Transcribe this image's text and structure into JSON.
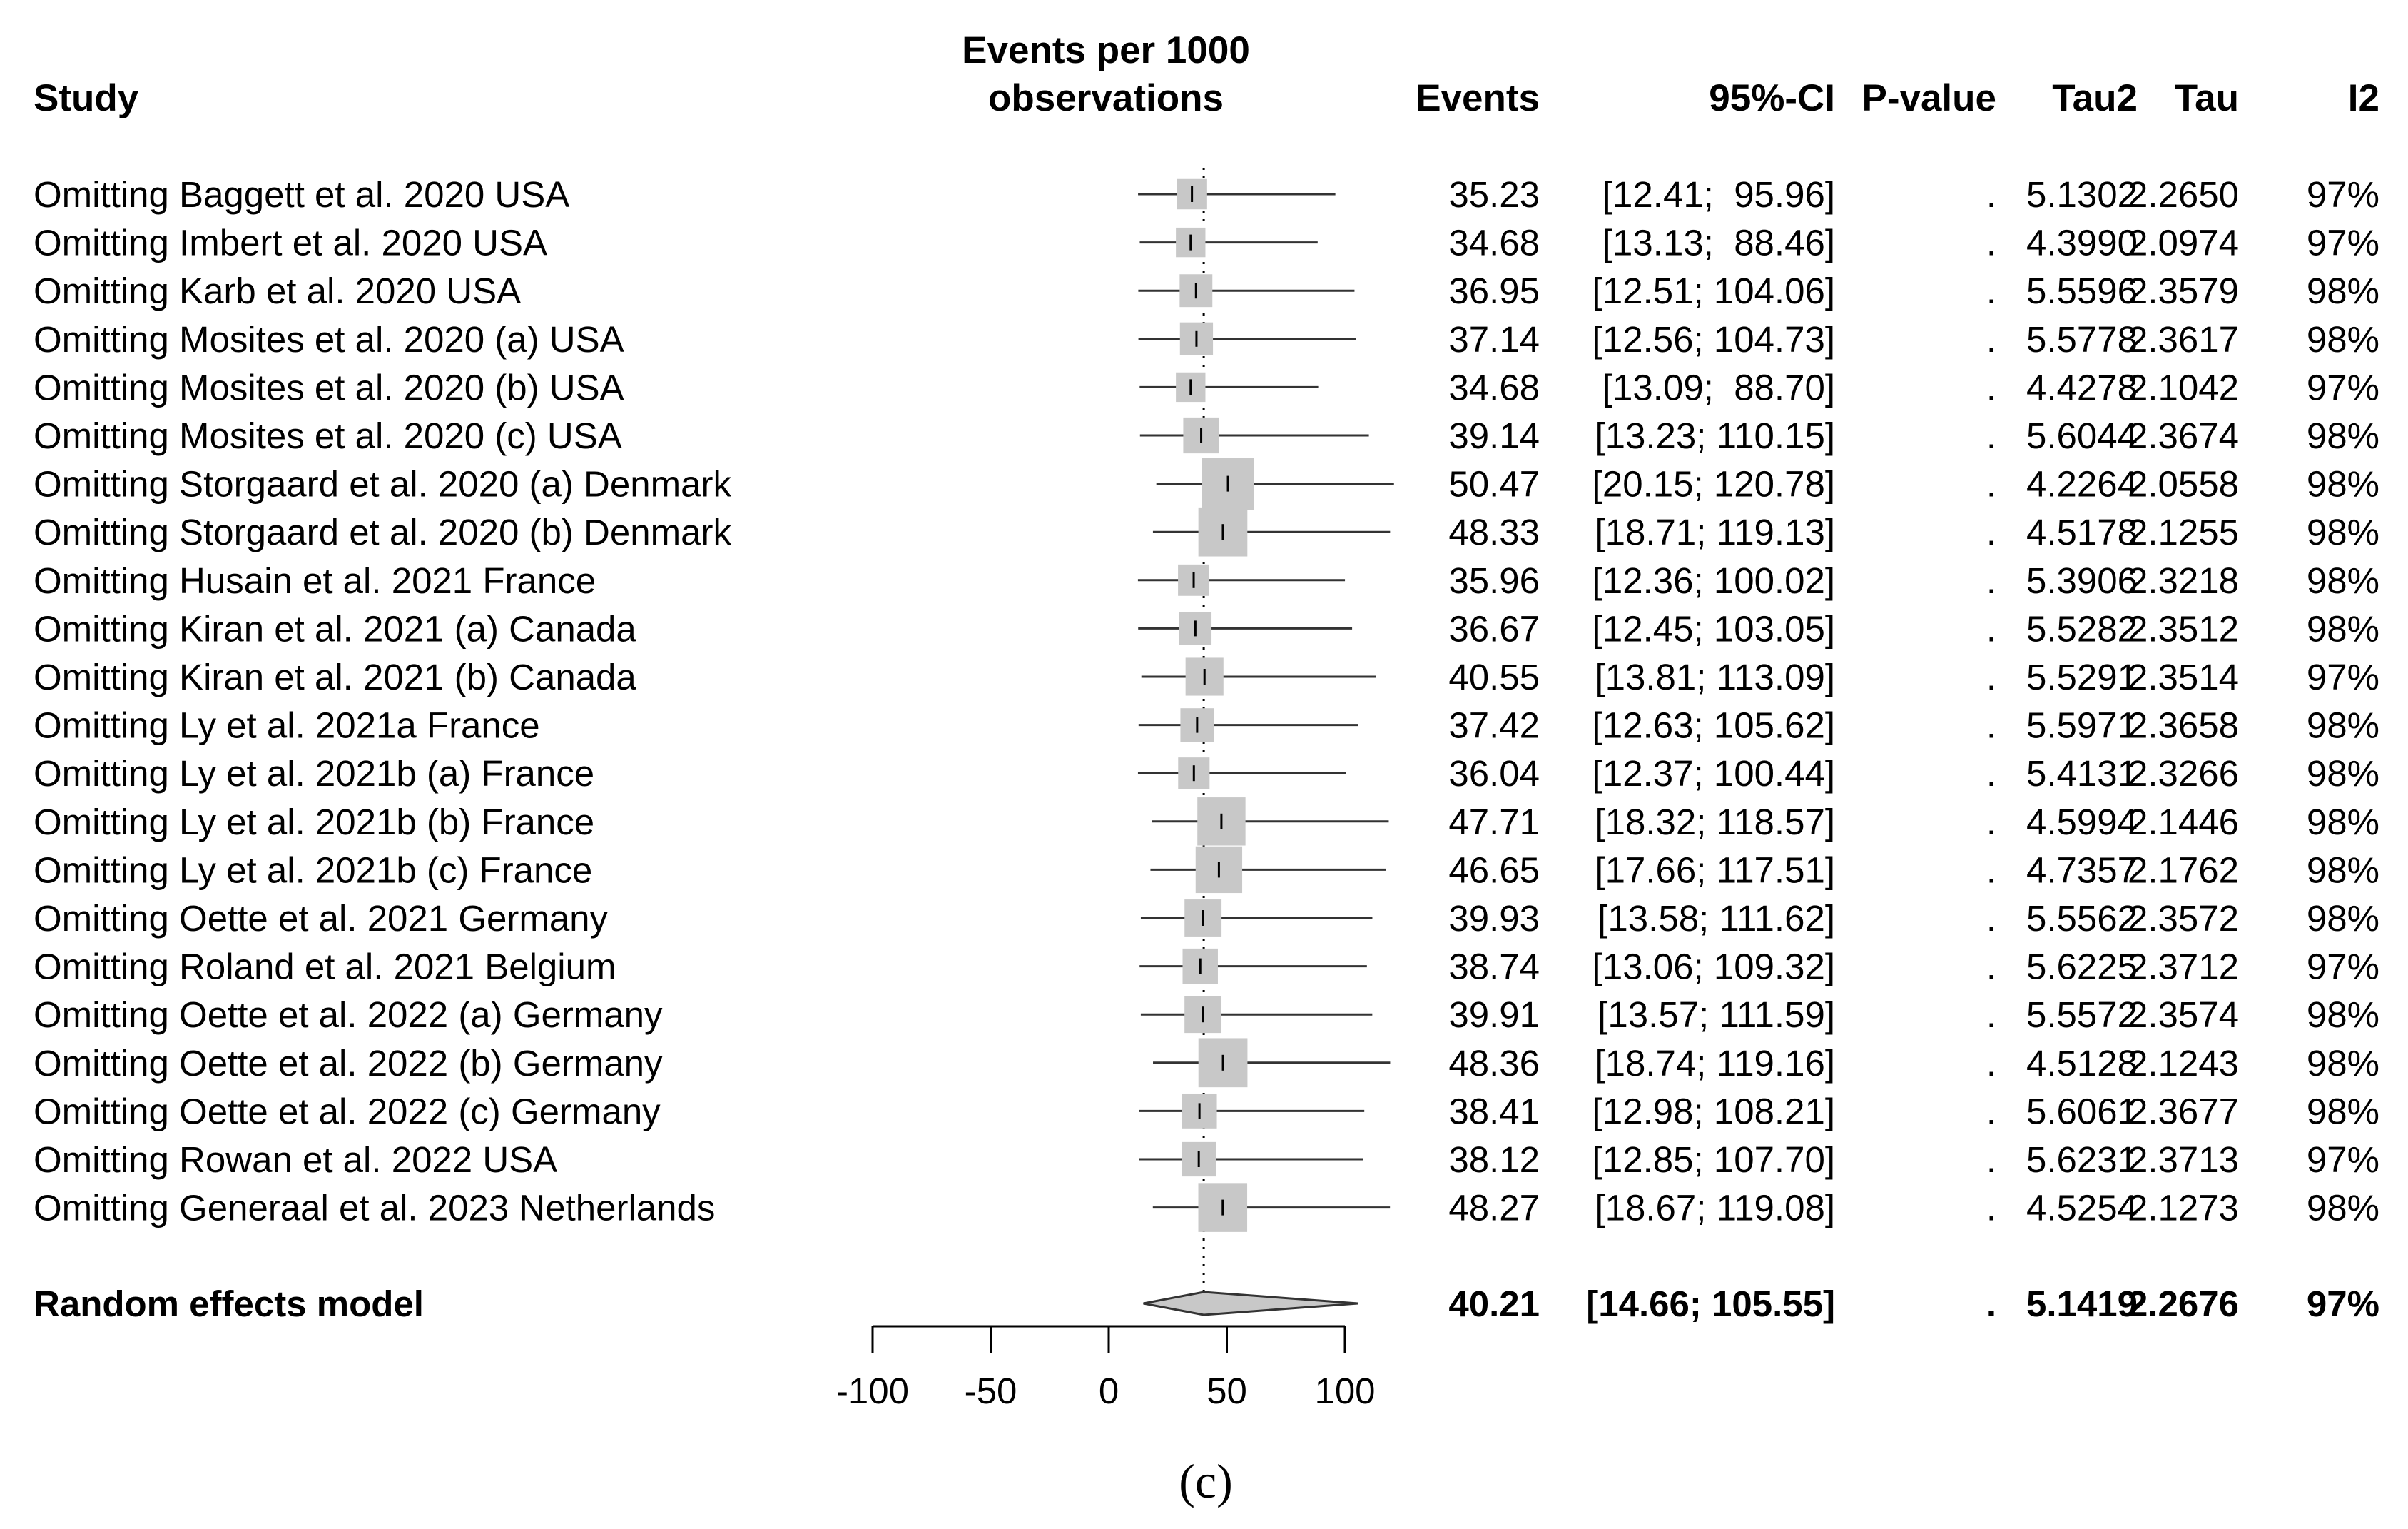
{
  "chart_data": {
    "type": "forest",
    "title": "",
    "caption": "(c)",
    "headers": {
      "study": "Study",
      "axis_title_line1": "Events per 1000",
      "axis_title_line2": "observations",
      "events": "Events",
      "ci": "95%-CI",
      "pvalue": "P-value",
      "tau2": "Tau2",
      "tau": "Tau",
      "i2": "I2"
    },
    "xlim": [
      -100,
      100
    ],
    "ticks": [
      -100,
      -50,
      0,
      50,
      100
    ],
    "tick_labels": [
      "-100",
      "-50",
      "0",
      "50",
      "100"
    ],
    "reference_line": 40.21,
    "studies": [
      {
        "label": "Omitting Baggett et al. 2020 USA",
        "events": 35.23,
        "events_text": "35.23",
        "lower": 12.41,
        "upper": 95.96,
        "ci_text": "[12.41;  95.96]",
        "p": ".",
        "tau2": "5.1302",
        "tau": "2.2650",
        "i2": "97%"
      },
      {
        "label": "Omitting Imbert et al. 2020 USA",
        "events": 34.68,
        "events_text": "34.68",
        "lower": 13.13,
        "upper": 88.46,
        "ci_text": "[13.13;  88.46]",
        "p": ".",
        "tau2": "4.3990",
        "tau": "2.0974",
        "i2": "97%"
      },
      {
        "label": "Omitting Karb et al. 2020 USA",
        "events": 36.95,
        "events_text": "36.95",
        "lower": 12.51,
        "upper": 104.06,
        "ci_text": "[12.51; 104.06]",
        "p": ".",
        "tau2": "5.5596",
        "tau": "2.3579",
        "i2": "98%"
      },
      {
        "label": "Omitting Mosites et al. 2020 (a) USA",
        "events": 37.14,
        "events_text": "37.14",
        "lower": 12.56,
        "upper": 104.73,
        "ci_text": "[12.56; 104.73]",
        "p": ".",
        "tau2": "5.5778",
        "tau": "2.3617",
        "i2": "98%"
      },
      {
        "label": "Omitting Mosites et al. 2020 (b) USA",
        "events": 34.68,
        "events_text": "34.68",
        "lower": 13.09,
        "upper": 88.7,
        "ci_text": "[13.09;  88.70]",
        "p": ".",
        "tau2": "4.4278",
        "tau": "2.1042",
        "i2": "97%"
      },
      {
        "label": "Omitting Mosites et al. 2020 (c) USA",
        "events": 39.14,
        "events_text": "39.14",
        "lower": 13.23,
        "upper": 110.15,
        "ci_text": "[13.23; 110.15]",
        "p": ".",
        "tau2": "5.6044",
        "tau": "2.3674",
        "i2": "98%"
      },
      {
        "label": "Omitting Storgaard et al. 2020 (a) Denmark",
        "events": 50.47,
        "events_text": "50.47",
        "lower": 20.15,
        "upper": 120.78,
        "ci_text": "[20.15; 120.78]",
        "p": ".",
        "tau2": "4.2264",
        "tau": "2.0558",
        "i2": "98%"
      },
      {
        "label": "Omitting Storgaard et al. 2020 (b) Denmark",
        "events": 48.33,
        "events_text": "48.33",
        "lower": 18.71,
        "upper": 119.13,
        "ci_text": "[18.71; 119.13]",
        "p": ".",
        "tau2": "4.5178",
        "tau": "2.1255",
        "i2": "98%"
      },
      {
        "label": "Omitting Husain et al. 2021 France",
        "events": 35.96,
        "events_text": "35.96",
        "lower": 12.36,
        "upper": 100.02,
        "ci_text": "[12.36; 100.02]",
        "p": ".",
        "tau2": "5.3906",
        "tau": "2.3218",
        "i2": "98%"
      },
      {
        "label": "Omitting Kiran et al. 2021 (a) Canada",
        "events": 36.67,
        "events_text": "36.67",
        "lower": 12.45,
        "upper": 103.05,
        "ci_text": "[12.45; 103.05]",
        "p": ".",
        "tau2": "5.5282",
        "tau": "2.3512",
        "i2": "98%"
      },
      {
        "label": "Omitting Kiran et al. 2021 (b) Canada",
        "events": 40.55,
        "events_text": "40.55",
        "lower": 13.81,
        "upper": 113.09,
        "ci_text": "[13.81; 113.09]",
        "p": ".",
        "tau2": "5.5291",
        "tau": "2.3514",
        "i2": "97%"
      },
      {
        "label": "Omitting Ly et al. 2021a France",
        "events": 37.42,
        "events_text": "37.42",
        "lower": 12.63,
        "upper": 105.62,
        "ci_text": "[12.63; 105.62]",
        "p": ".",
        "tau2": "5.5971",
        "tau": "2.3658",
        "i2": "98%"
      },
      {
        "label": "Omitting Ly et al. 2021b (a) France",
        "events": 36.04,
        "events_text": "36.04",
        "lower": 12.37,
        "upper": 100.44,
        "ci_text": "[12.37; 100.44]",
        "p": ".",
        "tau2": "5.4131",
        "tau": "2.3266",
        "i2": "98%"
      },
      {
        "label": "Omitting Ly et al. 2021b (b) France",
        "events": 47.71,
        "events_text": "47.71",
        "lower": 18.32,
        "upper": 118.57,
        "ci_text": "[18.32; 118.57]",
        "p": ".",
        "tau2": "4.5994",
        "tau": "2.1446",
        "i2": "98%"
      },
      {
        "label": "Omitting Ly et al. 2021b (c) France",
        "events": 46.65,
        "events_text": "46.65",
        "lower": 17.66,
        "upper": 117.51,
        "ci_text": "[17.66; 117.51]",
        "p": ".",
        "tau2": "4.7357",
        "tau": "2.1762",
        "i2": "98%"
      },
      {
        "label": "Omitting Oette et al. 2021 Germany",
        "events": 39.93,
        "events_text": "39.93",
        "lower": 13.58,
        "upper": 111.62,
        "ci_text": "[13.58; 111.62]",
        "p": ".",
        "tau2": "5.5562",
        "tau": "2.3572",
        "i2": "98%"
      },
      {
        "label": "Omitting Roland et al. 2021 Belgium",
        "events": 38.74,
        "events_text": "38.74",
        "lower": 13.06,
        "upper": 109.32,
        "ci_text": "[13.06; 109.32]",
        "p": ".",
        "tau2": "5.6225",
        "tau": "2.3712",
        "i2": "97%"
      },
      {
        "label": "Omitting Oette et al. 2022 (a) Germany",
        "events": 39.91,
        "events_text": "39.91",
        "lower": 13.57,
        "upper": 111.59,
        "ci_text": "[13.57; 111.59]",
        "p": ".",
        "tau2": "5.5572",
        "tau": "2.3574",
        "i2": "98%"
      },
      {
        "label": "Omitting Oette et al. 2022 (b) Germany",
        "events": 48.36,
        "events_text": "48.36",
        "lower": 18.74,
        "upper": 119.16,
        "ci_text": "[18.74; 119.16]",
        "p": ".",
        "tau2": "4.5128",
        "tau": "2.1243",
        "i2": "98%"
      },
      {
        "label": "Omitting Oette et al. 2022 (c) Germany",
        "events": 38.41,
        "events_text": "38.41",
        "lower": 12.98,
        "upper": 108.21,
        "ci_text": "[12.98; 108.21]",
        "p": ".",
        "tau2": "5.6061",
        "tau": "2.3677",
        "i2": "98%"
      },
      {
        "label": "Omitting Rowan et al. 2022 USA",
        "events": 38.12,
        "events_text": "38.12",
        "lower": 12.85,
        "upper": 107.7,
        "ci_text": "[12.85; 107.70]",
        "p": ".",
        "tau2": "5.6231",
        "tau": "2.3713",
        "i2": "97%"
      },
      {
        "label": "Omitting Generaal et al. 2023 Netherlands",
        "events": 48.27,
        "events_text": "48.27",
        "lower": 18.67,
        "upper": 119.08,
        "ci_text": "[18.67; 119.08]",
        "p": ".",
        "tau2": "4.5254",
        "tau": "2.1273",
        "i2": "98%"
      }
    ],
    "summary": {
      "label": "Random effects model",
      "events": 40.21,
      "events_text": "40.21",
      "lower": 14.66,
      "upper": 105.55,
      "ci_text": "[14.66; 105.55]",
      "p": ".",
      "tau2": "5.1419",
      "tau": "2.2676",
      "i2": "97%"
    },
    "colors": {
      "box": "#c8c8c8",
      "line": "#333333",
      "text": "#000000"
    }
  }
}
